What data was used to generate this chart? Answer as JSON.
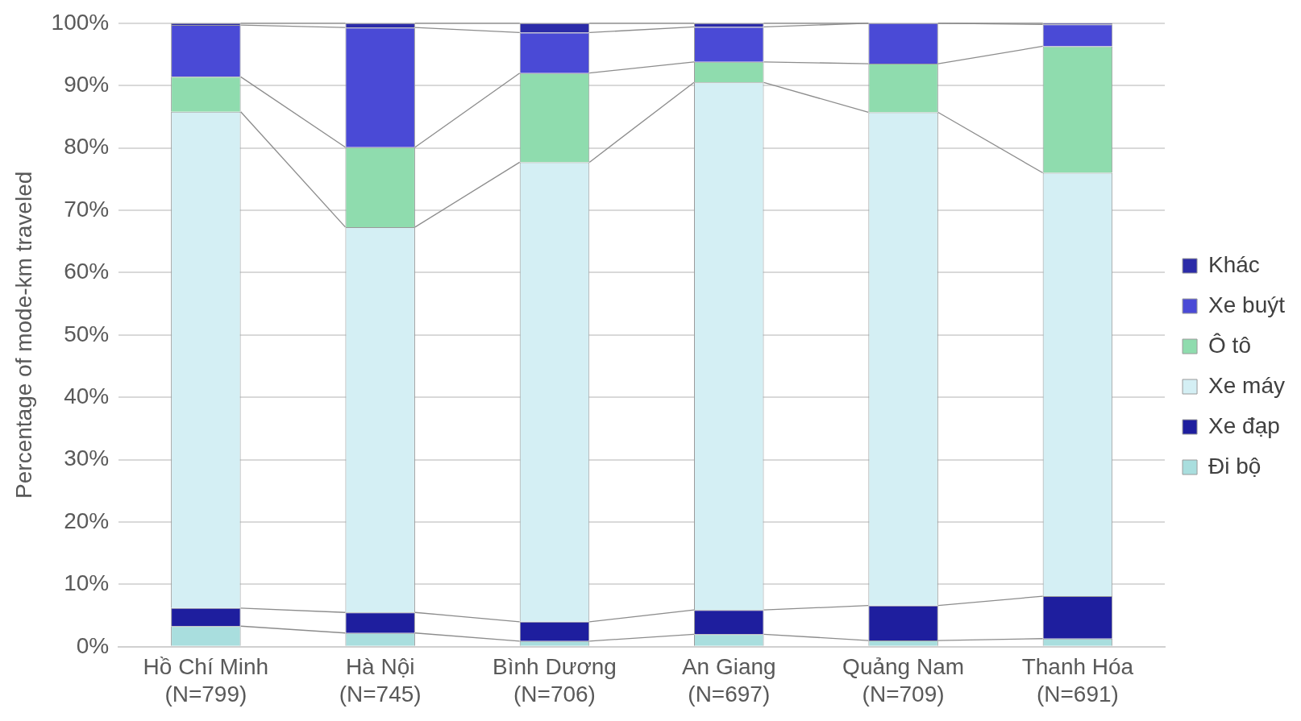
{
  "chart_data": {
    "type": "bar",
    "stacked": true,
    "ylabel": "Percentage of mode-km traveled",
    "categories": [
      "Hồ Chí Minh\n(N=799)",
      "Hà Nội\n(N=745)",
      "Bình Dương\n(N=706)",
      "An Giang\n(N=697)",
      "Quảng Nam\n(N=709)",
      "Thanh Hóa\n(N=691)"
    ],
    "series": [
      {
        "name": "Đi bộ",
        "color": "#a9dede",
        "values": [
          3.3,
          2.2,
          0.9,
          2.0,
          1.0,
          1.3
        ]
      },
      {
        "name": "Xe đạp",
        "color": "#1e1e9e",
        "values": [
          2.9,
          3.3,
          3.1,
          3.9,
          5.6,
          6.8
        ]
      },
      {
        "name": "Xe máy",
        "color": "#d4eff4",
        "values": [
          79.6,
          61.8,
          73.7,
          84.6,
          79.1,
          67.9
        ]
      },
      {
        "name": "Ô tô",
        "color": "#8fdcae",
        "values": [
          5.6,
          12.8,
          14.3,
          3.3,
          7.8,
          20.3
        ]
      },
      {
        "name": "Xe buýt",
        "color": "#4a4ad6",
        "values": [
          8.3,
          19.2,
          6.5,
          5.6,
          6.5,
          3.5
        ]
      },
      {
        "name": "Khác",
        "color": "#2b2ba8",
        "values": [
          0.3,
          0.7,
          1.5,
          0.6,
          0.0,
          0.2
        ]
      }
    ],
    "ylim": [
      0,
      100
    ],
    "yticks": [
      {
        "value": 0,
        "label": "0%"
      },
      {
        "value": 10,
        "label": "10%"
      },
      {
        "value": 20,
        "label": "20%"
      },
      {
        "value": 30,
        "label": "30%"
      },
      {
        "value": 40,
        "label": "40%"
      },
      {
        "value": 50,
        "label": "50%"
      },
      {
        "value": 60,
        "label": "60%"
      },
      {
        "value": 70,
        "label": "70%"
      },
      {
        "value": 80,
        "label": "80%"
      },
      {
        "value": 90,
        "label": "90%"
      },
      {
        "value": 100,
        "label": "100%"
      }
    ],
    "grid": "y",
    "legend": "right"
  }
}
